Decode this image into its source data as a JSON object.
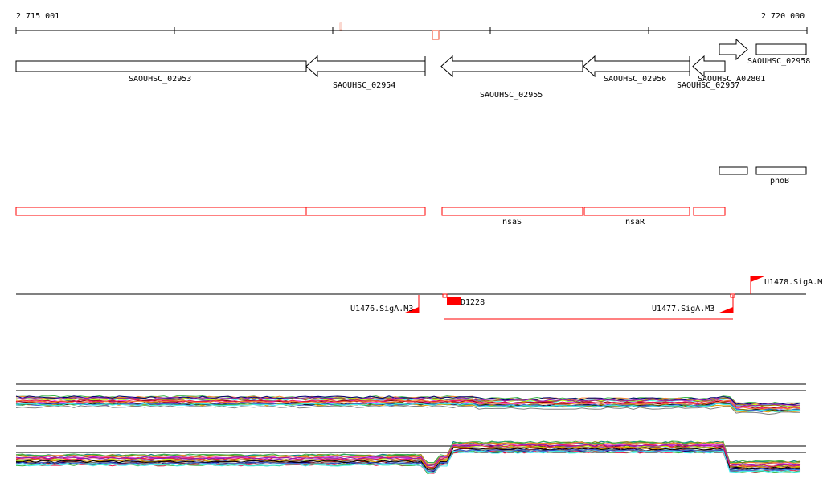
{
  "axis": {
    "start_label": "2 715 001",
    "end_label": "2 720 000"
  },
  "genes": [
    {
      "name": "SAOUHSC_02953",
      "strand": "-"
    },
    {
      "name": "SAOUHSC_02954",
      "strand": "-"
    },
    {
      "name": "SAOUHSC_02955",
      "strand": "-"
    },
    {
      "name": "SAOUHSC_02956",
      "strand": "-"
    },
    {
      "name": "SAOUHSC_02957",
      "strand": "-"
    },
    {
      "name": "SAOUHSC_A02801",
      "strand": "+"
    },
    {
      "name": "SAOUHSC_02958",
      "strand": "+"
    }
  ],
  "operon_label": "phoB",
  "red_features": [
    "nsaS",
    "nsaR"
  ],
  "promoters": [
    "U1476.SigA.M3",
    "U1477.SigA.M3",
    "U1478.SigA.M"
  ],
  "terminator_label": "D1228",
  "colors": {
    "feature": "#ff0000",
    "gene": "#000000"
  }
}
